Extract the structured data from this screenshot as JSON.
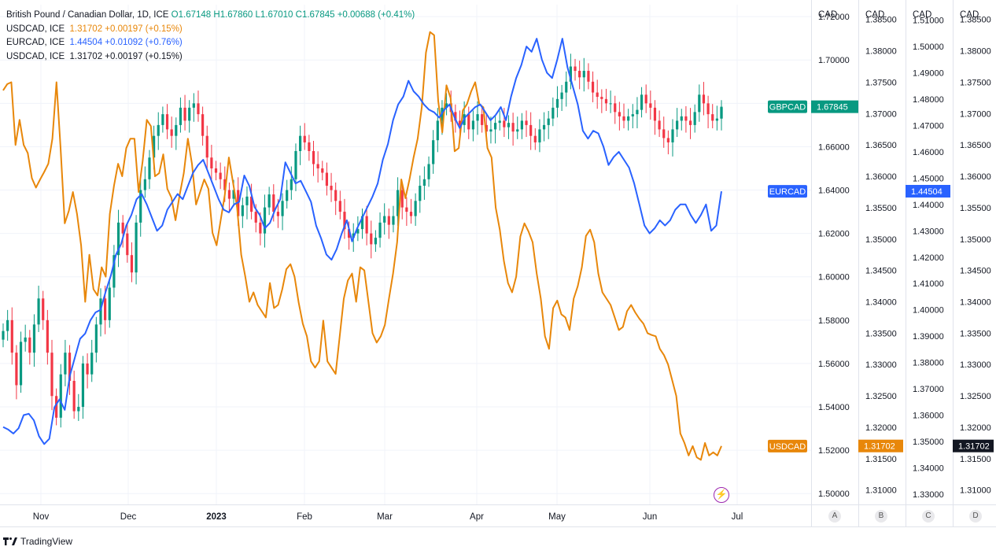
{
  "legend": {
    "main": {
      "title": "British Pound / Canadian Dollar, 1D, ICE",
      "o": "O1.67148",
      "h": "H1.67860",
      "l": "L1.67010",
      "c": "C1.67845",
      "chg": "+0.00688 (+0.41%)"
    },
    "rows": [
      {
        "name": "USDCAD, ICE",
        "value": "1.31702",
        "chg": "+0.00197 (+0.15%)",
        "color": "orange"
      },
      {
        "name": "EURCAD, ICE",
        "value": "1.44504",
        "chg": "+0.01092 (+0.76%)",
        "color": "blue"
      },
      {
        "name": "USDCAD, ICE",
        "value": "1.31702",
        "chg": "+0.00197 (+0.15%)",
        "color": "dark"
      }
    ]
  },
  "brand": "TradingView",
  "scale_letters": [
    "A",
    "B",
    "C",
    "D"
  ],
  "colors": {
    "up": "#089981",
    "down": "#f23645",
    "eurcad": "#2962ff",
    "usdcad": "#e8870a",
    "usdcad_dark": "#131722",
    "grid": "#f0f3fa"
  },
  "chart_data": {
    "type": "line",
    "x_ticks": [
      "Nov",
      "Dec",
      "2023",
      "Feb",
      "Mar",
      "Apr",
      "May",
      "Jun",
      "Jul"
    ],
    "axes": [
      {
        "id": "A",
        "header": "CAD",
        "range": [
          1.495,
          1.7255
        ],
        "ticks": [
          "1.72000",
          "1.70000",
          "1.68000",
          "1.66000",
          "1.64000",
          "1.62000",
          "1.60000",
          "1.58000",
          "1.56000",
          "1.54000",
          "1.52000",
          "1.50000"
        ]
      },
      {
        "id": "B",
        "header": "CAD",
        "range": [
          1.3077,
          1.38735
        ],
        "ticks": [
          "1.38500",
          "1.38000",
          "1.37500",
          "1.37000",
          "1.36500",
          "1.36000",
          "1.35500",
          "1.35000",
          "1.34500",
          "1.34000",
          "1.33500",
          "1.33000",
          "1.32500",
          "1.32000",
          "1.31500",
          "1.31000"
        ]
      },
      {
        "id": "C",
        "header": "CAD",
        "range": [
          1.32608,
          1.51587
        ],
        "ticks": [
          "1.51000",
          "1.50000",
          "1.49000",
          "1.48000",
          "1.47000",
          "1.46000",
          "1.45000",
          "1.44000",
          "1.43000",
          "1.42000",
          "1.41000",
          "1.40000",
          "1.39000",
          "1.38000",
          "1.37000",
          "1.36000",
          "1.35000",
          "1.34000",
          "1.33000"
        ]
      },
      {
        "id": "D",
        "header": "CAD",
        "range": [
          1.3077,
          1.38735
        ],
        "ticks": [
          "1.38500",
          "1.38000",
          "1.37500",
          "1.37000",
          "1.36500",
          "1.36000",
          "1.35500",
          "1.35000",
          "1.34500",
          "1.34000",
          "1.33500",
          "1.33000",
          "1.32500",
          "1.32000",
          "1.31500",
          "1.31000"
        ]
      }
    ],
    "badges": [
      {
        "axis": "A",
        "label": "GBPCAD",
        "value": "1.67845",
        "color": "#089981"
      },
      {
        "axis": "A",
        "label": "EURCAD",
        "value": "",
        "color": "#2962ff"
      },
      {
        "axis": "A",
        "label": "USDCAD",
        "value": "",
        "color": "#e8870a"
      },
      {
        "axis": "B",
        "label": "",
        "value": "1.31702",
        "color": "#e8870a"
      },
      {
        "axis": "C",
        "label": "",
        "value": "1.44504",
        "color": "#2962ff"
      },
      {
        "axis": "D",
        "label": "",
        "value": "1.31702",
        "color": "#131722"
      }
    ],
    "gbpcad_closes": [
      1.575,
      1.58,
      1.565,
      1.55,
      1.57,
      1.572,
      1.565,
      1.578,
      1.59,
      1.58,
      1.565,
      1.545,
      1.535,
      1.555,
      1.565,
      1.552,
      1.538,
      1.54,
      1.56,
      1.555,
      1.565,
      1.578,
      1.59,
      1.58,
      1.595,
      1.61,
      1.625,
      1.62,
      1.61,
      1.602,
      1.625,
      1.64,
      1.645,
      1.655,
      1.665,
      1.67,
      1.675,
      1.668,
      1.665,
      1.67,
      1.678,
      1.672,
      1.678,
      1.68,
      1.675,
      1.665,
      1.655,
      1.65,
      1.648,
      1.645,
      1.64,
      1.636,
      1.64,
      1.628,
      1.633,
      1.637,
      1.63,
      1.625,
      1.62,
      1.632,
      1.638,
      1.63,
      1.628,
      1.635,
      1.64,
      1.645,
      1.658,
      1.665,
      1.662,
      1.658,
      1.652,
      1.65,
      1.648,
      1.642,
      1.64,
      1.635,
      1.63,
      1.622,
      1.618,
      1.62,
      1.622,
      1.628,
      1.62,
      1.615,
      1.618,
      1.625,
      1.628,
      1.624,
      1.628,
      1.64,
      1.632,
      1.63,
      1.628,
      1.635,
      1.642,
      1.645,
      1.652,
      1.663,
      1.672,
      1.678,
      1.68,
      1.676,
      1.672,
      1.67,
      1.675,
      1.668,
      1.672,
      1.675,
      1.67,
      1.667,
      1.668,
      1.671,
      1.672,
      1.669,
      1.671,
      1.667,
      1.668,
      1.672,
      1.67,
      1.665,
      1.662,
      1.668,
      1.67,
      1.673,
      1.678,
      1.682,
      1.685,
      1.69,
      1.697,
      1.695,
      1.692,
      1.695,
      1.69,
      1.685,
      1.683,
      1.682,
      1.68,
      1.68,
      1.676,
      1.674,
      1.672,
      1.674,
      1.675,
      1.677,
      1.684,
      1.68,
      1.678,
      1.672,
      1.668,
      1.664,
      1.662,
      1.668,
      1.672,
      1.674,
      1.672,
      1.67,
      1.676,
      1.684,
      1.68,
      1.675,
      1.672,
      1.673,
      1.678
    ],
    "gbpcad_last": 1.67845,
    "eurcad": [
      1.3555,
      1.3545,
      1.353,
      1.355,
      1.36,
      1.3605,
      1.358,
      1.352,
      1.349,
      1.351,
      1.363,
      1.366,
      1.362,
      1.375,
      1.382,
      1.389,
      1.391,
      1.396,
      1.399,
      1.4,
      1.407,
      1.413,
      1.421,
      1.425,
      1.432,
      1.436,
      1.442,
      1.444,
      1.44,
      1.435,
      1.43,
      1.432,
      1.438,
      1.441,
      1.444,
      1.442,
      1.447,
      1.452,
      1.455,
      1.457,
      1.452,
      1.447,
      1.442,
      1.438,
      1.437,
      1.44,
      1.441,
      1.451,
      1.447,
      1.439,
      1.436,
      1.431,
      1.433,
      1.438,
      1.442,
      1.456,
      1.452,
      1.448,
      1.449,
      1.445,
      1.441,
      1.432,
      1.427,
      1.421,
      1.419,
      1.423,
      1.429,
      1.434,
      1.426,
      1.431,
      1.435,
      1.439,
      1.443,
      1.448,
      1.457,
      1.463,
      1.472,
      1.478,
      1.481,
      1.487,
      1.483,
      1.481,
      1.478,
      1.476,
      1.475,
      1.473,
      1.476,
      1.478,
      1.473,
      1.469,
      1.473,
      1.475,
      1.477,
      1.478,
      1.475,
      1.472,
      1.474,
      1.477,
      1.472,
      1.481,
      1.488,
      1.493,
      1.5,
      1.498,
      1.503,
      1.495,
      1.49,
      1.488,
      1.495,
      1.503,
      1.492,
      1.485,
      1.478,
      1.468,
      1.465,
      1.468,
      1.467,
      1.462,
      1.455,
      1.458,
      1.46,
      1.457,
      1.454,
      1.448,
      1.44,
      1.432,
      1.429,
      1.431,
      1.434,
      1.432,
      1.434,
      1.438,
      1.44,
      1.44,
      1.436,
      1.433,
      1.436,
      1.44,
      1.43,
      1.432,
      1.445
    ],
    "usdcad_b": [
      1.3737,
      1.3747,
      1.375,
      1.365,
      1.369,
      1.365,
      1.3637,
      1.3597,
      1.3582,
      1.3595,
      1.3607,
      1.362,
      1.366,
      1.375,
      1.3645,
      1.3525,
      1.3545,
      1.3575,
      1.354,
      1.349,
      1.34,
      1.3475,
      1.342,
      1.341,
      1.3455,
      1.344,
      1.354,
      1.3585,
      1.362,
      1.36,
      1.3645,
      1.366,
      1.366,
      1.3575,
      1.3625,
      1.369,
      1.368,
      1.36,
      1.3605,
      1.3635,
      1.358,
      1.3566,
      1.353,
      1.357,
      1.3605,
      1.366,
      1.362,
      1.3555,
      1.3575,
      1.3595,
      1.358,
      1.351,
      1.349,
      1.353,
      1.357,
      1.363,
      1.359,
      1.355,
      1.3475,
      1.344,
      1.34,
      1.3415,
      1.3395,
      1.3385,
      1.3375,
      1.343,
      1.339,
      1.3395,
      1.342,
      1.3452,
      1.346,
      1.344,
      1.3399,
      1.3365,
      1.3345,
      1.3305,
      1.3295,
      1.3305,
      1.337,
      1.3305,
      1.3295,
      1.3285,
      1.3345,
      1.3405,
      1.3434,
      1.3445,
      1.34,
      1.3455,
      1.345,
      1.34,
      1.335,
      1.3335,
      1.3345,
      1.3363,
      1.3405,
      1.3445,
      1.3495,
      1.3595,
      1.3565,
      1.3595,
      1.363,
      1.366,
      1.371,
      1.3797,
      1.383,
      1.3825,
      1.372,
      1.367,
      1.3745,
      1.3725,
      1.364,
      1.3645,
      1.3705,
      1.3715,
      1.3735,
      1.375,
      1.3715,
      1.371,
      1.3645,
      1.363,
      1.355,
      1.3515,
      1.3465,
      1.343,
      1.3415,
      1.344,
      1.3504,
      1.3525,
      1.3512,
      1.3495,
      1.3445,
      1.3405,
      1.3345,
      1.3325,
      1.339,
      1.3402,
      1.338,
      1.3375,
      1.3355,
      1.3405,
      1.3425,
      1.3455,
      1.3505,
      1.3515,
      1.3495,
      1.3445,
      1.3415,
      1.3405,
      1.3395,
      1.3375,
      1.3355,
      1.336,
      1.3385,
      1.3395,
      1.3383,
      1.3373,
      1.3365,
      1.335,
      1.3347,
      1.3345,
      1.3325,
      1.3315,
      1.33,
      1.3275,
      1.325,
      1.319,
      1.3175,
      1.3155,
      1.317,
      1.3152,
      1.3148,
      1.3175,
      1.3155,
      1.316,
      1.3155,
      1.317
    ]
  }
}
